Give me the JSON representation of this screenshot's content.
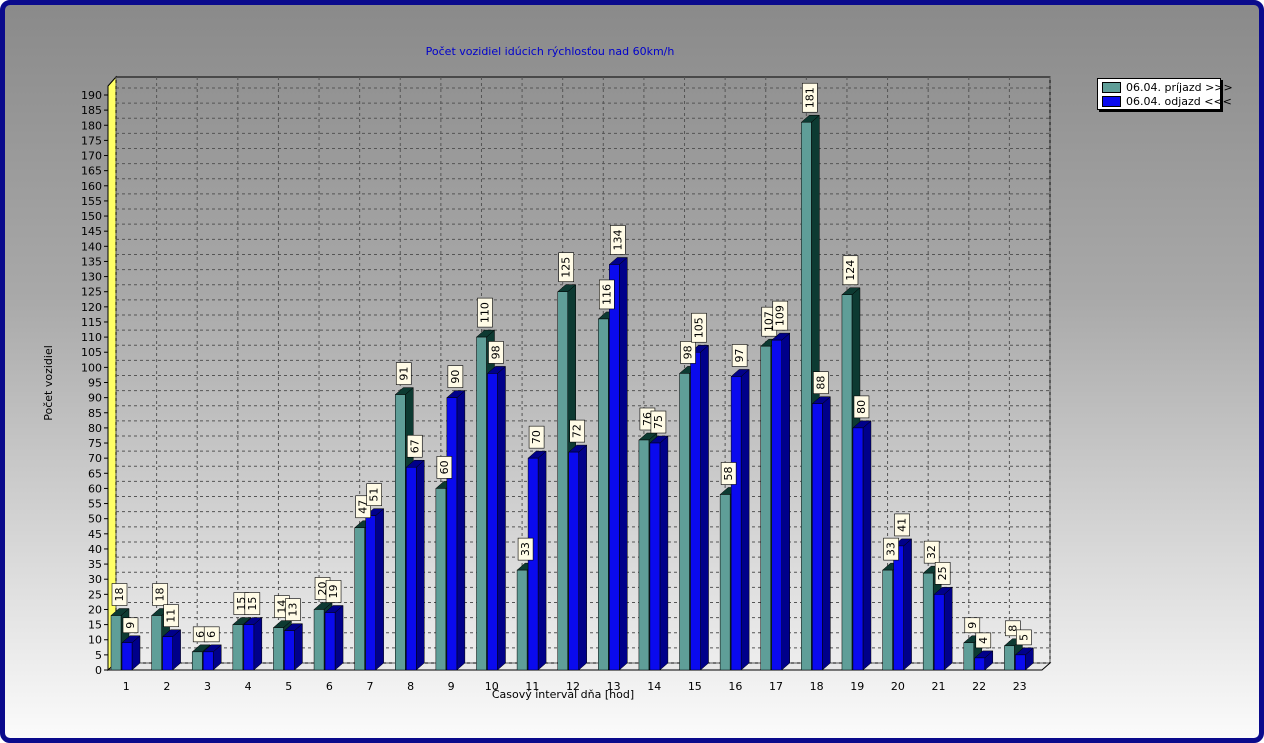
{
  "chart_data": {
    "type": "bar",
    "title": "Počet vozidiel idúcich rýchlosťou nad 60km/h",
    "xlabel": "Časový interval dňa [hod]",
    "ylabel": "Počet vozidiel",
    "ylim": [
      0,
      190
    ],
    "ytick_step": 5,
    "grid": true,
    "legend_position": "top-right",
    "categories": [
      "1",
      "2",
      "3",
      "4",
      "5",
      "6",
      "7",
      "8",
      "9",
      "10",
      "11",
      "12",
      "13",
      "14",
      "15",
      "16",
      "17",
      "18",
      "19",
      "20",
      "21",
      "22",
      "23"
    ],
    "series": [
      {
        "name": "06.04.  príjazd >>>",
        "color": "#5f9e98",
        "side_color": "#0d3a32",
        "values": [
          18,
          18,
          6,
          15,
          14,
          20,
          47,
          91,
          60,
          110,
          33,
          125,
          116,
          76,
          98,
          58,
          107,
          181,
          124,
          33,
          32,
          9,
          8
        ]
      },
      {
        "name": "06.04.  odjazd <<<",
        "color": "#0a0aee",
        "side_color": "#00008a",
        "values": [
          9,
          11,
          6,
          15,
          13,
          19,
          51,
          67,
          90,
          98,
          70,
          72,
          134,
          75,
          105,
          97,
          109,
          88,
          80,
          41,
          25,
          4,
          5
        ]
      }
    ]
  }
}
